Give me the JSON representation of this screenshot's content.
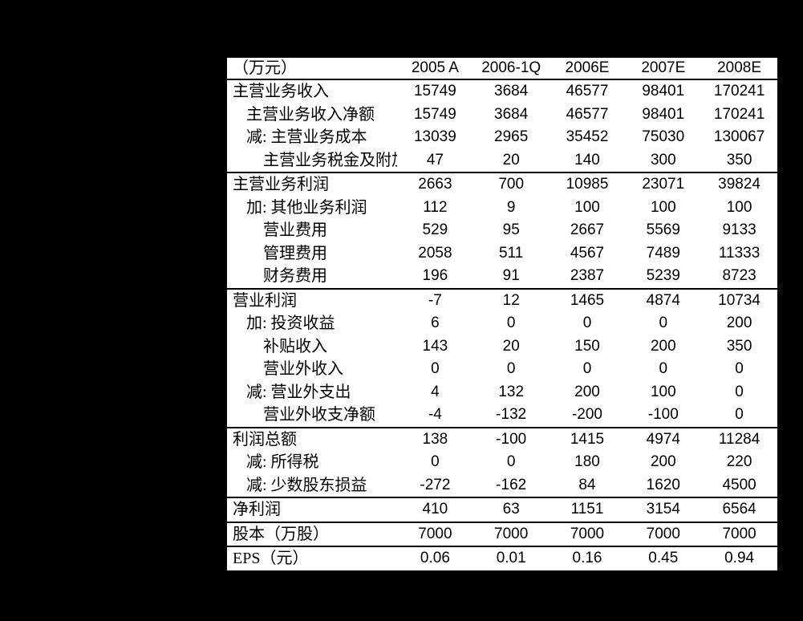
{
  "page": {
    "background_color": "#000000",
    "table_background_color": "#ffffff",
    "text_color": "#000000"
  },
  "table": {
    "unit_header": "（万元）",
    "columns": [
      "2005 A",
      "2006-1Q",
      "2006E",
      "2007E",
      "2008E"
    ],
    "sections": [
      {
        "name": "revenue",
        "rows": [
          {
            "label": "主营业务收入",
            "indent": 0,
            "values": [
              "15749",
              "3684",
              "46577",
              "98401",
              "170241"
            ]
          },
          {
            "label": "主营业务收入净额",
            "indent": 1,
            "values": [
              "15749",
              "3684",
              "46577",
              "98401",
              "170241"
            ]
          },
          {
            "label": "减: 主营业务成本",
            "indent": 1,
            "values": [
              "13039",
              "2965",
              "35452",
              "75030",
              "130067"
            ]
          },
          {
            "label": "主营业务税金及附加",
            "indent": 2,
            "clipped": true,
            "values": [
              "47",
              "20",
              "140",
              "300",
              "350"
            ]
          }
        ]
      },
      {
        "name": "main-operating-profit",
        "rows": [
          {
            "label": "主营业务利润",
            "indent": 0,
            "values": [
              "2663",
              "700",
              "10985",
              "23071",
              "39824"
            ]
          },
          {
            "label": "加: 其他业务利润",
            "indent": 1,
            "values": [
              "112",
              "9",
              "100",
              "100",
              "100"
            ]
          },
          {
            "label": "营业费用",
            "indent": 2,
            "values": [
              "529",
              "95",
              "2667",
              "5569",
              "9133"
            ]
          },
          {
            "label": "管理费用",
            "indent": 2,
            "values": [
              "2058",
              "511",
              "4567",
              "7489",
              "11333"
            ]
          },
          {
            "label": "财务费用",
            "indent": 2,
            "values": [
              "196",
              "91",
              "2387",
              "5239",
              "8723"
            ]
          }
        ]
      },
      {
        "name": "operating-profit",
        "rows": [
          {
            "label": "营业利润",
            "indent": 0,
            "values": [
              "-7",
              "12",
              "1465",
              "4874",
              "10734"
            ]
          },
          {
            "label": "加: 投资收益",
            "indent": 1,
            "values": [
              "6",
              "0",
              "0",
              "0",
              "200"
            ]
          },
          {
            "label": "补贴收入",
            "indent": 2,
            "values": [
              "143",
              "20",
              "150",
              "200",
              "350"
            ]
          },
          {
            "label": "营业外收入",
            "indent": 2,
            "values": [
              "0",
              "0",
              "0",
              "0",
              "0"
            ]
          },
          {
            "label": "减: 营业外支出",
            "indent": 1,
            "values": [
              "4",
              "132",
              "200",
              "100",
              "0"
            ]
          },
          {
            "label": "营业外收支净额",
            "indent": 2,
            "values": [
              "-4",
              "-132",
              "-200",
              "-100",
              "0"
            ]
          }
        ]
      },
      {
        "name": "total-profit",
        "rows": [
          {
            "label": "利润总额",
            "indent": 0,
            "values": [
              "138",
              "-100",
              "1415",
              "4974",
              "11284"
            ]
          },
          {
            "label": "减: 所得税",
            "indent": 1,
            "values": [
              "0",
              "0",
              "180",
              "200",
              "220"
            ]
          },
          {
            "label": "减: 少数股东损益",
            "indent": 1,
            "values": [
              "-272",
              "-162",
              "84",
              "1620",
              "4500"
            ]
          }
        ]
      },
      {
        "name": "net-profit",
        "rows": [
          {
            "label": "净利润",
            "indent": 0,
            "values": [
              "410",
              "63",
              "1151",
              "3154",
              "6564"
            ]
          }
        ]
      },
      {
        "name": "share-capital",
        "rows": [
          {
            "label": "股本（万股）",
            "indent": 0,
            "values": [
              "7000",
              "7000",
              "7000",
              "7000",
              "7000"
            ]
          }
        ]
      },
      {
        "name": "eps",
        "rows": [
          {
            "label": "EPS（元）",
            "indent": 0,
            "values": [
              "0.06",
              "0.01",
              "0.16",
              "0.45",
              "0.94"
            ]
          }
        ]
      }
    ]
  }
}
